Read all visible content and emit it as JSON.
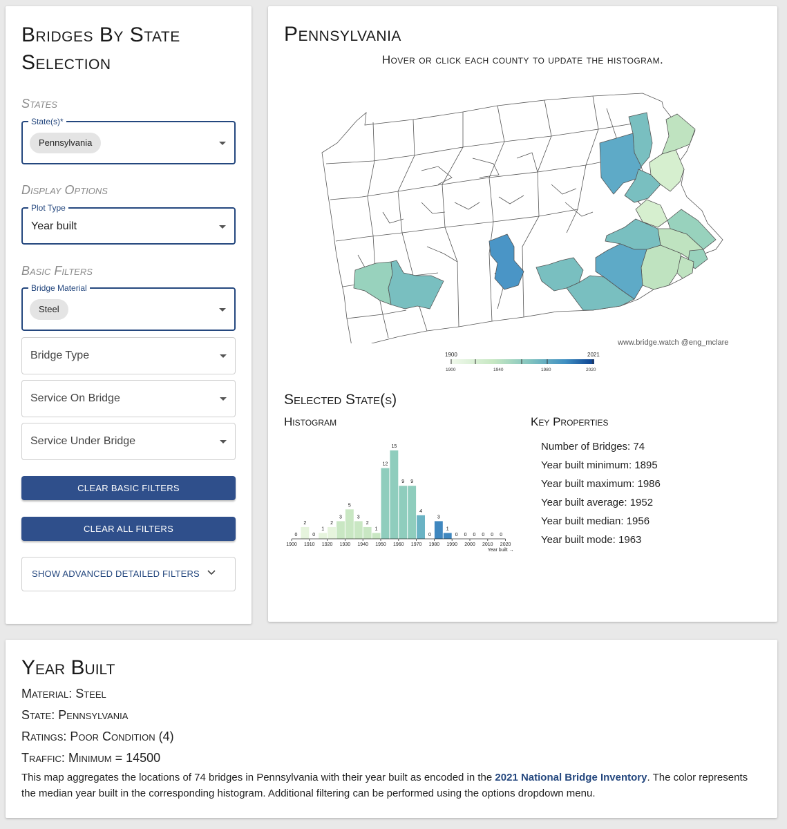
{
  "sidebar": {
    "title": "Bridges By State Selection",
    "states_section": "States",
    "states_field": {
      "legend": "State(s)*",
      "chip": "Pennsylvania"
    },
    "display_section": "Display Options",
    "plot_type_field": {
      "legend": "Plot Type",
      "value": "Year built"
    },
    "basic_section": "Basic Filters",
    "material_field": {
      "legend": "Bridge Material",
      "chip": "Steel"
    },
    "bridge_type_placeholder": "Bridge Type",
    "service_on_placeholder": "Service On Bridge",
    "service_under_placeholder": "Service Under Bridge",
    "clear_basic_label": "Clear basic filters",
    "clear_all_label": "Clear all filters",
    "advanced_label": "SHOW ADVANCED DETAILED FILTERS"
  },
  "map_panel": {
    "title": "Pennsylvania",
    "subtitle": "Hover or click each county to update the histogram.",
    "credit": "www.bridge.watch @eng_mclare",
    "legend": {
      "min_label": "1900",
      "max_label": "2021",
      "ticks": [
        "1900",
        "1940",
        "1980",
        "2020"
      ]
    },
    "colors": {
      "none": "#ffffff",
      "c1": "#d6efcf",
      "c2": "#bfe3c0",
      "c3": "#98d2bd",
      "c4": "#79bfc0",
      "c5": "#5eaac7",
      "c6": "#4a95c6"
    }
  },
  "selected": {
    "heading": "Selected State(s)",
    "histogram_heading": "Histogram",
    "properties_heading": "Key Properties",
    "properties": [
      "Number of Bridges: 74",
      "Year built minimum: 1895",
      "Year built maximum: 1986",
      "Year built average: 1952",
      "Year built median: 1956",
      "Year built mode: 1963"
    ]
  },
  "chart_data": {
    "type": "bar",
    "title": "Histogram",
    "xlabel": "Year built →",
    "ylabel": "",
    "bins": [
      1900,
      1905,
      1910,
      1915,
      1920,
      1925,
      1930,
      1935,
      1940,
      1945,
      1950,
      1955,
      1960,
      1965,
      1970,
      1975,
      1980,
      1985,
      1990,
      1995,
      2000,
      2005,
      2010,
      2015
    ],
    "values": [
      0,
      2,
      0,
      1,
      2,
      3,
      5,
      3,
      2,
      1,
      12,
      15,
      9,
      9,
      4,
      0,
      3,
      1,
      0,
      0,
      0,
      0,
      0,
      0
    ],
    "tick_labels": [
      "1900",
      "1910",
      "1920",
      "1930",
      "1940",
      "1950",
      "1960",
      "1970",
      "1980",
      "1990",
      "2000",
      "2010",
      "2020"
    ],
    "ylim": [
      0,
      15
    ]
  },
  "bottom": {
    "title": "Year Built",
    "material": "Material: Steel",
    "state": "State: Pennsylvania",
    "ratings": "Ratings: Poor Condition (4)",
    "traffic": "Traffic: Minimum = 14500",
    "desc_before": "This map aggregates the locations of 74 bridges in Pennsylvania with their year built as encoded in the ",
    "desc_link": "2021 National Bridge Inventory",
    "desc_after": ". The color represents the median year built in the corresponding histogram. Additional filtering can be performed using the options dropdown menu."
  }
}
